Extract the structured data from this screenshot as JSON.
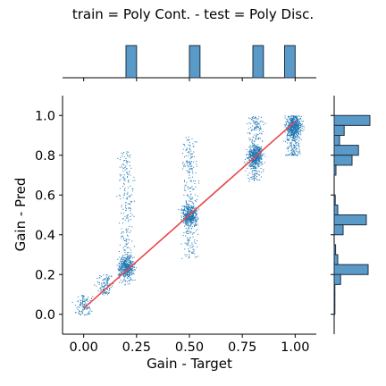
{
  "chart_data": {
    "type": "scatter",
    "title": "train = Poly Cont. - test = Poly Disc.",
    "xlabel": "Gain - Target",
    "ylabel": "Gain - Pred",
    "xlim": [
      -0.1,
      1.1
    ],
    "ylim": [
      -0.1,
      1.1
    ],
    "x_ticks": [
      0.0,
      0.25,
      0.5,
      0.75,
      1.0
    ],
    "x_tick_labels": [
      "0.00",
      "0.25",
      "0.50",
      "0.75",
      "1.00"
    ],
    "y_ticks": [
      0.0,
      0.2,
      0.4,
      0.6,
      0.8,
      1.0
    ],
    "y_tick_labels": [
      "0.0",
      "0.2",
      "0.4",
      "0.6",
      "0.8",
      "1.0"
    ],
    "grid": false,
    "colors": {
      "points": "#1f77b4",
      "fit_line": "#e8474a",
      "hist_fill": "#5a9ac9",
      "hist_edge": "#1f2f3f"
    },
    "fit_line": {
      "x": [
        0.0,
        1.0
      ],
      "y": [
        0.03,
        0.97
      ]
    },
    "clusters": [
      {
        "x": 0.0,
        "y_min": 0.0,
        "y_max": 0.1,
        "y_center": 0.04,
        "count": 120,
        "x_spread": 0.035
      },
      {
        "x": 0.1,
        "y_min": 0.1,
        "y_max": 0.2,
        "y_center": 0.15,
        "count": 120,
        "x_spread": 0.035
      },
      {
        "x": 0.2,
        "y_min": 0.15,
        "y_max": 0.82,
        "y_center": 0.24,
        "count": 700,
        "x_spread": 0.035
      },
      {
        "x": 0.5,
        "y_min": 0.28,
        "y_max": 0.9,
        "y_center": 0.5,
        "count": 700,
        "x_spread": 0.035
      },
      {
        "x": 0.81,
        "y_min": 0.67,
        "y_max": 1.0,
        "y_center": 0.8,
        "count": 700,
        "x_spread": 0.035
      },
      {
        "x": 0.99,
        "y_min": 0.8,
        "y_max": 1.0,
        "y_center": 0.95,
        "count": 700,
        "x_spread": 0.035
      }
    ],
    "marginal_x": {
      "bins": [
        {
          "x0": 0.2,
          "x1": 0.25,
          "height": 1.0
        },
        {
          "x0": 0.5,
          "x1": 0.55,
          "height": 1.0
        },
        {
          "x0": 0.8,
          "x1": 0.85,
          "height": 1.0
        },
        {
          "x0": 0.95,
          "x1": 1.0,
          "height": 1.0
        }
      ]
    },
    "marginal_y": {
      "bins": [
        {
          "y0": 0.95,
          "y1": 1.0,
          "width": 1.0
        },
        {
          "y0": 0.9,
          "y1": 0.95,
          "width": 0.28
        },
        {
          "y0": 0.85,
          "y1": 0.9,
          "width": 0.15
        },
        {
          "y0": 0.8,
          "y1": 0.85,
          "width": 0.68
        },
        {
          "y0": 0.75,
          "y1": 0.8,
          "width": 0.5
        },
        {
          "y0": 0.7,
          "y1": 0.75,
          "width": 0.05
        },
        {
          "y0": 0.55,
          "y1": 0.6,
          "width": 0.03
        },
        {
          "y0": 0.5,
          "y1": 0.55,
          "width": 0.1
        },
        {
          "y0": 0.45,
          "y1": 0.5,
          "width": 0.9
        },
        {
          "y0": 0.4,
          "y1": 0.45,
          "width": 0.25
        },
        {
          "y0": 0.3,
          "y1": 0.35,
          "width": 0.04
        },
        {
          "y0": 0.25,
          "y1": 0.3,
          "width": 0.1
        },
        {
          "y0": 0.2,
          "y1": 0.25,
          "width": 0.95
        },
        {
          "y0": 0.15,
          "y1": 0.2,
          "width": 0.18
        },
        {
          "y0": 0.1,
          "y1": 0.15,
          "width": 0.02
        },
        {
          "y0": 0.05,
          "y1": 0.1,
          "width": 0.02
        },
        {
          "y0": 0.0,
          "y1": 0.05,
          "width": 0.02
        }
      ]
    }
  }
}
